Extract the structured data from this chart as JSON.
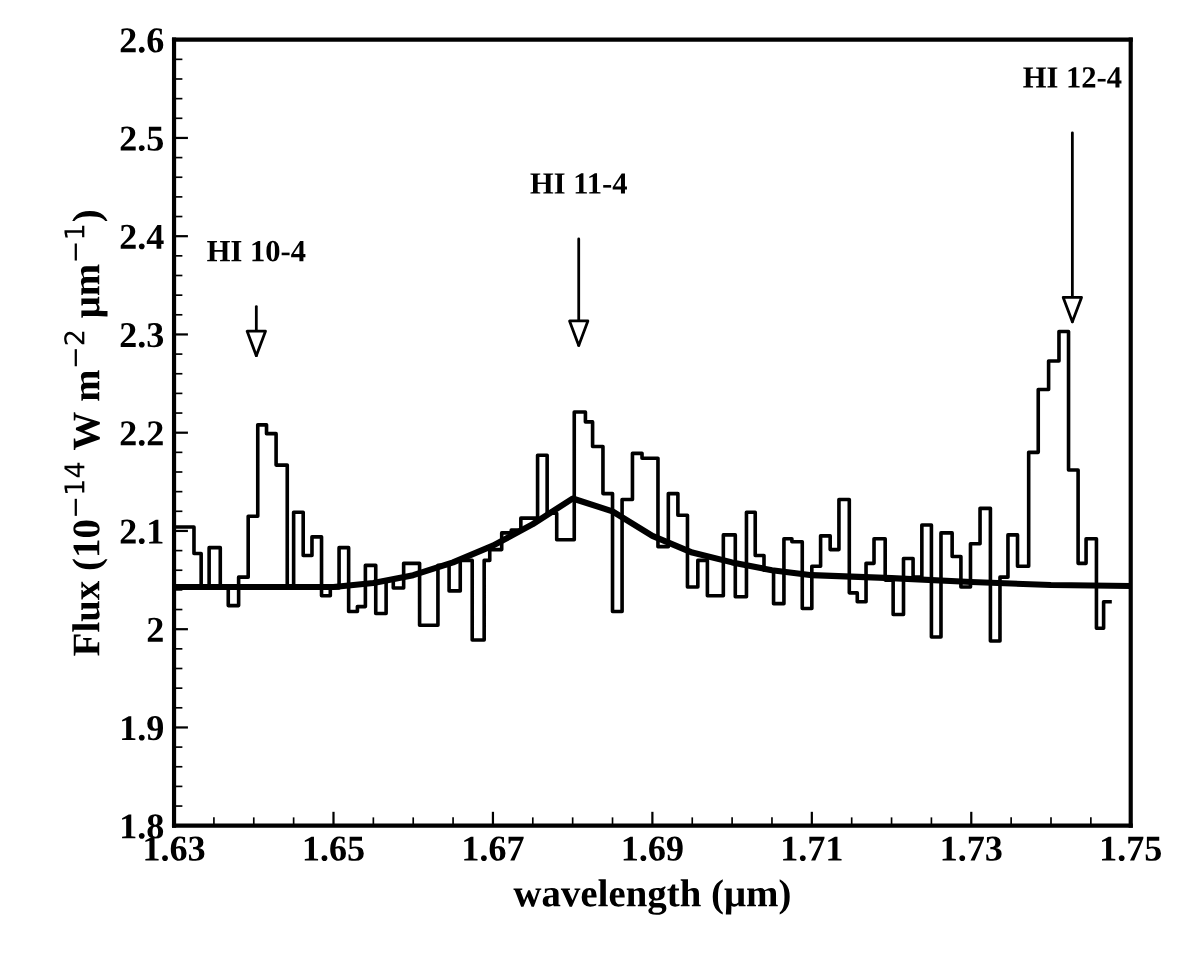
{
  "chart_data": {
    "type": "step",
    "xlabel": "wavelength (μm)",
    "ylabel": "Flux (10$^{−14}$ W m$^{−2}$ μm$^{−1}$)",
    "xlim": [
      1.63,
      1.75
    ],
    "ylim": [
      1.8,
      2.6
    ],
    "xticks": [
      1.63,
      1.65,
      1.67,
      1.69,
      1.71,
      1.73,
      1.75
    ],
    "yticks": [
      1.8,
      1.9,
      2,
      2.1,
      2.2,
      2.3,
      2.4,
      2.5,
      2.6
    ],
    "grid": false,
    "marker": "none",
    "line_style": "solid",
    "series": [
      {
        "color": "#000000",
        "x": [
          1.63,
          1.6325,
          1.6334,
          1.6344,
          1.6358,
          1.6368,
          1.6381,
          1.6393,
          1.6405,
          1.6416,
          1.6428,
          1.6442,
          1.645,
          1.6462,
          1.6473,
          1.6485,
          1.6496,
          1.6507,
          1.6519,
          1.653,
          1.654,
          1.6553,
          1.6566,
          1.6575,
          1.6588,
          1.6608,
          1.6631,
          1.6645,
          1.6659,
          1.6674,
          1.6689,
          1.6696,
          1.6711,
          1.6723,
          1.6735,
          1.6756,
          1.6768,
          1.678,
          1.6802,
          1.6816,
          1.6825,
          1.6838,
          1.685,
          1.6862,
          1.6875,
          1.6887,
          1.6907,
          1.692,
          1.6932,
          1.6944,
          1.6957,
          1.6969,
          1.6989,
          1.7004,
          1.7018,
          1.7029,
          1.704,
          1.7052,
          1.7065,
          1.7075,
          1.7088,
          1.71,
          1.7111,
          1.7123,
          1.7134,
          1.7147,
          1.7157,
          1.7168,
          1.7178,
          1.7192,
          1.7202,
          1.7215,
          1.7227,
          1.7238,
          1.725,
          1.7262,
          1.7276,
          1.7287,
          1.7299,
          1.7311,
          1.7324,
          1.7336,
          1.7346,
          1.7358,
          1.7372,
          1.7384,
          1.7397,
          1.741,
          1.7422,
          1.7434,
          1.7444,
          1.7457,
          1.7466,
          1.7474
        ],
        "values": [
          2.104,
          2.077,
          2.043,
          2.083,
          2.043,
          2.024,
          2.053,
          2.115,
          2.208,
          2.199,
          2.167,
          2.043,
          2.119,
          2.075,
          2.094,
          2.034,
          2.042,
          2.083,
          2.018,
          2.023,
          2.065,
          2.016,
          2.05,
          2.042,
          2.067,
          2.004,
          2.065,
          2.039,
          2.07,
          1.989,
          2.07,
          2.081,
          2.098,
          2.101,
          2.113,
          2.177,
          2.118,
          2.091,
          2.221,
          2.211,
          2.186,
          2.138,
          2.018,
          2.132,
          2.179,
          2.174,
          2.084,
          2.138,
          2.116,
          2.043,
          2.07,
          2.034,
          2.096,
          2.033,
          2.119,
          2.075,
          2.06,
          2.026,
          2.092,
          2.089,
          2.021,
          2.064,
          2.095,
          2.081,
          2.132,
          2.037,
          2.028,
          2.067,
          2.092,
          2.05,
          2.015,
          2.072,
          2.053,
          2.106,
          1.992,
          2.098,
          2.074,
          2.043,
          2.087,
          2.123,
          1.988,
          2.053,
          2.096,
          2.064,
          2.18,
          2.244,
          2.273,
          2.303,
          2.162,
          2.067,
          2.092,
          2.001,
          2.028,
          2.028
        ]
      },
      {
        "type": "line",
        "color": "#000000",
        "x": [
          1.63,
          1.65,
          1.655,
          1.66,
          1.665,
          1.67,
          1.675,
          1.68,
          1.685,
          1.69,
          1.695,
          1.7,
          1.705,
          1.71,
          1.72,
          1.73,
          1.74,
          1.75
        ],
        "values": [
          2.043,
          2.043,
          2.047,
          2.055,
          2.068,
          2.085,
          2.107,
          2.133,
          2.12,
          2.095,
          2.078,
          2.068,
          2.06,
          2.055,
          2.052,
          2.048,
          2.045,
          2.044
        ]
      }
    ],
    "annotations": [
      "HI 10-4",
      "HI 11-4",
      "HI 12-4"
    ]
  }
}
